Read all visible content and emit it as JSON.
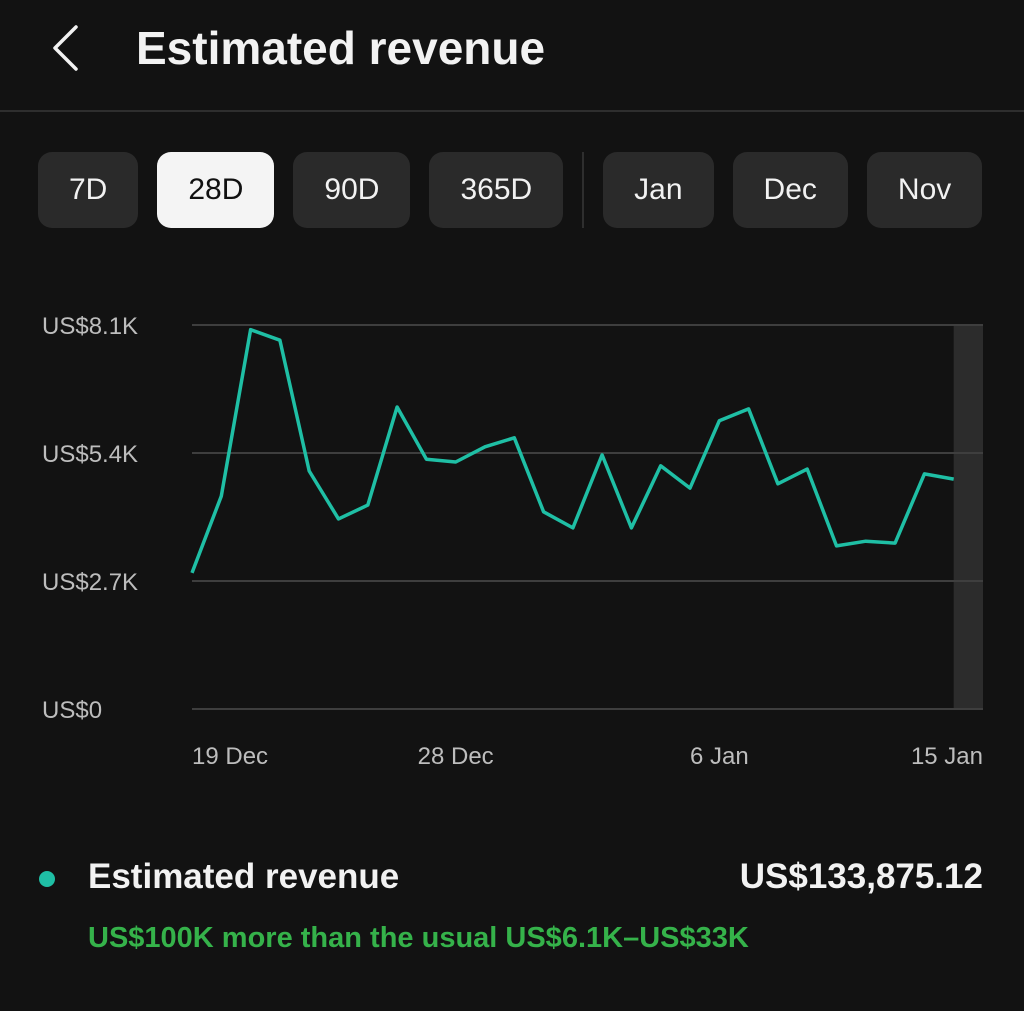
{
  "header": {
    "title": "Estimated revenue"
  },
  "tabs": {
    "items": [
      "7D",
      "28D",
      "90D",
      "365D",
      "Jan",
      "Dec",
      "Nov"
    ],
    "selected": 1,
    "divider_after": 3
  },
  "chart_data": {
    "type": "line",
    "categories": [
      "19 Dec",
      null,
      null,
      null,
      null,
      null,
      null,
      null,
      null,
      "28 Dec",
      null,
      null,
      null,
      null,
      null,
      null,
      null,
      null,
      "6 Jan",
      null,
      null,
      null,
      null,
      null,
      null,
      null,
      null,
      "15 Jan"
    ],
    "series": [
      {
        "name": "Estimated revenue",
        "color": "#1fbfa5",
        "values": [
          2870,
          4490,
          8000,
          7780,
          5020,
          4010,
          4300,
          6370,
          5270,
          5210,
          5530,
          5720,
          4160,
          3820,
          5360,
          3820,
          5130,
          4660,
          6080,
          6330,
          4750,
          5060,
          3440,
          3540,
          3500,
          4960,
          4850,
          null
        ]
      }
    ],
    "ylim": [
      0,
      8100
    ],
    "yticks": [
      {
        "value": 0,
        "label": "US$0"
      },
      {
        "value": 2700,
        "label": "US$2.7K"
      },
      {
        "value": 5400,
        "label": "US$5.4K"
      },
      {
        "value": 8100,
        "label": "US$8.1K"
      }
    ],
    "grid": true
  },
  "summary": {
    "total": "US$133,875.12",
    "comparison": "US$100K more than the usual US$6.1K–US$33K"
  }
}
